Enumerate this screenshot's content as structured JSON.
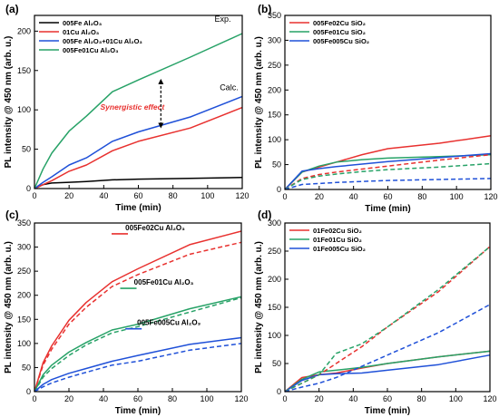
{
  "chart_data": [
    {
      "panel": "(a)",
      "type": "line",
      "xlabel": "Time (min)",
      "ylabel": "PL intensity @ 450 nm (arb. u.)",
      "xlim": [
        0,
        120
      ],
      "ylim": [
        0,
        220
      ],
      "xticks": [
        0,
        20,
        40,
        60,
        80,
        100,
        120
      ],
      "yticks": [
        0,
        50,
        100,
        150,
        200
      ],
      "legend_position": "top-left",
      "series": [
        {
          "name": "005Fe Al₂O₃",
          "color": "#000000",
          "dash": false,
          "x": [
            0,
            5,
            10,
            20,
            30,
            45,
            60,
            90,
            120
          ],
          "y": [
            0,
            5,
            7,
            8,
            9,
            11,
            12,
            13,
            14
          ]
        },
        {
          "name": "01Cu Al₂O₃",
          "color": "#e8312f",
          "dash": false,
          "x": [
            0,
            5,
            10,
            20,
            30,
            45,
            60,
            90,
            120
          ],
          "y": [
            0,
            5,
            10,
            22,
            30,
            48,
            60,
            77,
            103
          ]
        },
        {
          "name": "005Fe Al₂O₃+01Cu Al₂O₃",
          "color": "#1f50d8",
          "dash": false,
          "x": [
            0,
            5,
            10,
            20,
            30,
            45,
            60,
            90,
            120
          ],
          "y": [
            0,
            8,
            15,
            30,
            39,
            60,
            72,
            91,
            117
          ]
        },
        {
          "name": "005Fe01Cu Al₂O₃",
          "color": "#27a267",
          "dash": false,
          "x": [
            0,
            5,
            10,
            20,
            30,
            45,
            60,
            90,
            120
          ],
          "y": [
            0,
            25,
            45,
            73,
            92,
            123,
            138,
            167,
            197
          ]
        }
      ],
      "annotations": [
        {
          "text": "Exp.",
          "x": 104,
          "y": 212,
          "color": "#000000"
        },
        {
          "text": "Calc.",
          "x": 107,
          "y": 125,
          "color": "#000000"
        },
        {
          "text": "Synergistic effect",
          "x": 38,
          "y": 100,
          "color": "#e8312f"
        }
      ],
      "arrow": {
        "x": 73,
        "y1": 136,
        "y2": 80
      }
    },
    {
      "panel": "(b)",
      "type": "line",
      "xlabel": "Time (min)",
      "ylabel": "PL intensity @ 450 nm (arb. u.)",
      "xlim": [
        0,
        120
      ],
      "ylim": [
        0,
        350
      ],
      "xticks": [
        0,
        20,
        40,
        60,
        80,
        100,
        120
      ],
      "yticks": [
        0,
        50,
        100,
        150,
        200,
        250,
        300,
        350
      ],
      "legend_position": "top-left",
      "series": [
        {
          "name": "005Fe02Cu SiO₂",
          "color": "#e8312f",
          "dash": false,
          "x": [
            0,
            10,
            20,
            30,
            45,
            60,
            90,
            120
          ],
          "y": [
            0,
            35,
            45,
            55,
            70,
            82,
            93,
            108
          ]
        },
        {
          "name": "005Fe01Cu SiO₂",
          "color": "#27a267",
          "dash": false,
          "x": [
            0,
            10,
            20,
            30,
            45,
            60,
            90,
            120
          ],
          "y": [
            0,
            35,
            47,
            55,
            60,
            63,
            66,
            70
          ]
        },
        {
          "name": "005Fe005Cu SiO₂",
          "color": "#1f50d8",
          "dash": false,
          "x": [
            0,
            10,
            20,
            30,
            45,
            60,
            90,
            120
          ],
          "y": [
            0,
            37,
            42,
            46,
            51,
            56,
            64,
            72
          ]
        },
        {
          "name": "",
          "color": "#e8312f",
          "dash": true,
          "x": [
            0,
            10,
            20,
            30,
            45,
            60,
            90,
            120
          ],
          "y": [
            0,
            22,
            30,
            35,
            41,
            47,
            59,
            70
          ]
        },
        {
          "name": "",
          "color": "#27a267",
          "dash": true,
          "x": [
            0,
            10,
            20,
            30,
            45,
            60,
            90,
            120
          ],
          "y": [
            0,
            20,
            27,
            31,
            36,
            40,
            45,
            52
          ]
        },
        {
          "name": "",
          "color": "#1f50d8",
          "dash": true,
          "x": [
            0,
            10,
            20,
            30,
            45,
            60,
            90,
            120
          ],
          "y": [
            0,
            10,
            12,
            14,
            16,
            18,
            20,
            22
          ]
        }
      ]
    },
    {
      "panel": "(c)",
      "type": "line",
      "xlabel": "Time (min)",
      "ylabel": "PL intensity @ 450 nm (arb. u.)",
      "xlim": [
        0,
        120
      ],
      "ylim": [
        0,
        350
      ],
      "xticks": [
        0,
        20,
        40,
        60,
        80,
        100,
        120
      ],
      "yticks": [
        0,
        50,
        100,
        150,
        200,
        250,
        300,
        350
      ],
      "series": [
        {
          "name": "005Fe02Cu Al₂O₃",
          "color": "#e8312f",
          "dash": false,
          "x": [
            0,
            5,
            10,
            20,
            30,
            45,
            60,
            90,
            120
          ],
          "y": [
            0,
            60,
            95,
            148,
            185,
            228,
            255,
            305,
            333
          ]
        },
        {
          "name": "",
          "color": "#e8312f",
          "dash": true,
          "x": [
            0,
            5,
            10,
            20,
            30,
            45,
            60,
            90,
            120
          ],
          "y": [
            0,
            55,
            88,
            140,
            175,
            218,
            243,
            285,
            310
          ]
        },
        {
          "name": "005Fe01Cu Al₂O₃",
          "color": "#27a267",
          "dash": false,
          "x": [
            0,
            5,
            10,
            20,
            30,
            45,
            60,
            90,
            120
          ],
          "y": [
            0,
            35,
            55,
            82,
            102,
            128,
            140,
            172,
            197
          ]
        },
        {
          "name": "",
          "color": "#27a267",
          "dash": true,
          "x": [
            0,
            5,
            10,
            20,
            30,
            45,
            60,
            90,
            120
          ],
          "y": [
            0,
            30,
            48,
            75,
            97,
            122,
            135,
            165,
            195
          ]
        },
        {
          "name": "005Fe005Cu Al₂O₃",
          "color": "#1f50d8",
          "dash": false,
          "x": [
            0,
            5,
            10,
            20,
            30,
            45,
            60,
            90,
            120
          ],
          "y": [
            0,
            15,
            25,
            38,
            48,
            63,
            75,
            98,
            112
          ]
        },
        {
          "name": "",
          "color": "#1f50d8",
          "dash": true,
          "x": [
            0,
            5,
            10,
            20,
            30,
            45,
            60,
            90,
            120
          ],
          "y": [
            0,
            10,
            18,
            30,
            40,
            55,
            63,
            86,
            100
          ]
        }
      ],
      "series_labels": [
        {
          "text": "005Fe02Cu Al₂O₃",
          "color": "#e8312f",
          "x": 70,
          "y": 335
        },
        {
          "text": "005Fe01Cu Al₂O₃",
          "color": "#27a267",
          "x": 75,
          "y": 222
        },
        {
          "text": "005Fe005Cu Al₂O₃",
          "color": "#1f50d8",
          "x": 78,
          "y": 138
        }
      ]
    },
    {
      "panel": "(d)",
      "type": "line",
      "xlabel": "Time (min)",
      "ylabel": "PL intensity @ 450 nm (arb. u.)",
      "xlim": [
        0,
        120
      ],
      "ylim": [
        0,
        300
      ],
      "xticks": [
        0,
        20,
        40,
        60,
        80,
        100,
        120
      ],
      "yticks": [
        0,
        50,
        100,
        150,
        200,
        250,
        300
      ],
      "legend_position": "top-left",
      "series": [
        {
          "name": "01Fe02Cu SiO₂",
          "color": "#e8312f",
          "dash": false,
          "x": [
            0,
            10,
            20,
            30,
            45,
            60,
            90,
            120
          ],
          "y": [
            0,
            25,
            30,
            33,
            42,
            50,
            62,
            72
          ]
        },
        {
          "name": "01Fe01Cu SiO₂",
          "color": "#27a267",
          "dash": false,
          "x": [
            0,
            10,
            20,
            30,
            45,
            60,
            90,
            120
          ],
          "y": [
            0,
            22,
            35,
            38,
            43,
            50,
            62,
            72
          ]
        },
        {
          "name": "01Fe005Cu SiO₂",
          "color": "#1f50d8",
          "dash": false,
          "x": [
            0,
            10,
            20,
            30,
            45,
            60,
            90,
            120
          ],
          "y": [
            0,
            20,
            30,
            32,
            33,
            38,
            48,
            65
          ]
        },
        {
          "name": "",
          "color": "#e8312f",
          "dash": true,
          "x": [
            0,
            10,
            20,
            30,
            45,
            60,
            90,
            120
          ],
          "y": [
            0,
            15,
            30,
            50,
            80,
            115,
            178,
            258
          ]
        },
        {
          "name": "",
          "color": "#27a267",
          "dash": true,
          "x": [
            0,
            10,
            20,
            30,
            45,
            60,
            90,
            120
          ],
          "y": [
            0,
            15,
            30,
            68,
            85,
            115,
            182,
            258
          ]
        },
        {
          "name": "",
          "color": "#1f50d8",
          "dash": true,
          "x": [
            0,
            10,
            20,
            30,
            45,
            60,
            90,
            120
          ],
          "y": [
            0,
            8,
            15,
            25,
            45,
            65,
            105,
            155
          ]
        }
      ]
    }
  ]
}
